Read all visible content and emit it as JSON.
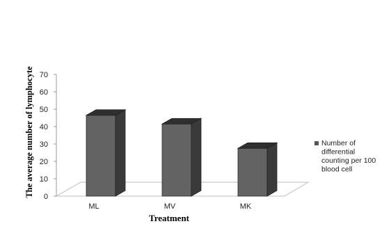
{
  "chart_data": {
    "type": "bar",
    "style": "3d-column",
    "categories": [
      "ML",
      "MV",
      "MK"
    ],
    "series": [
      {
        "name": "Number of differential counting per 100 blood cell",
        "values": [
          46.5,
          41.5,
          27.5
        ],
        "color": "#636363"
      }
    ],
    "xlabel": "Treatment",
    "ylabel": "The average number of lymphocyte",
    "ylim": [
      0,
      70
    ],
    "yticks": [
      0,
      10,
      20,
      30,
      40,
      50,
      60,
      70
    ],
    "grid": false,
    "legend": {
      "position": "right",
      "lines": [
        "Number of",
        "differential",
        "counting per 100",
        "blood cell"
      ]
    }
  }
}
